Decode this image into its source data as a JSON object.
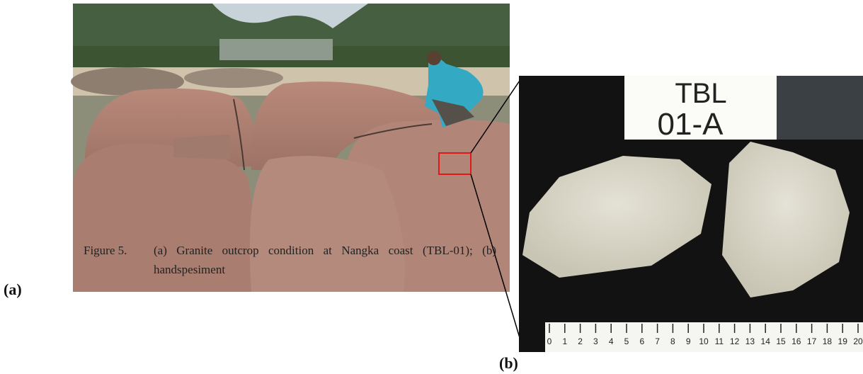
{
  "figure": {
    "panel_a_label": "(a)",
    "panel_b_label": "(b)",
    "caption_number": "Figure 5.",
    "caption_text": "(a) Granite outcrop condition at Nangka coast (TBL-01); (b) handspesiment",
    "sample_label_line1": "TBL",
    "sample_label_line2": "01-A",
    "ruler_labels": [
      0,
      1,
      2,
      3,
      4,
      5,
      6,
      7,
      8,
      9,
      10,
      11,
      12,
      13,
      14,
      15,
      16,
      17,
      18,
      19,
      20
    ]
  }
}
